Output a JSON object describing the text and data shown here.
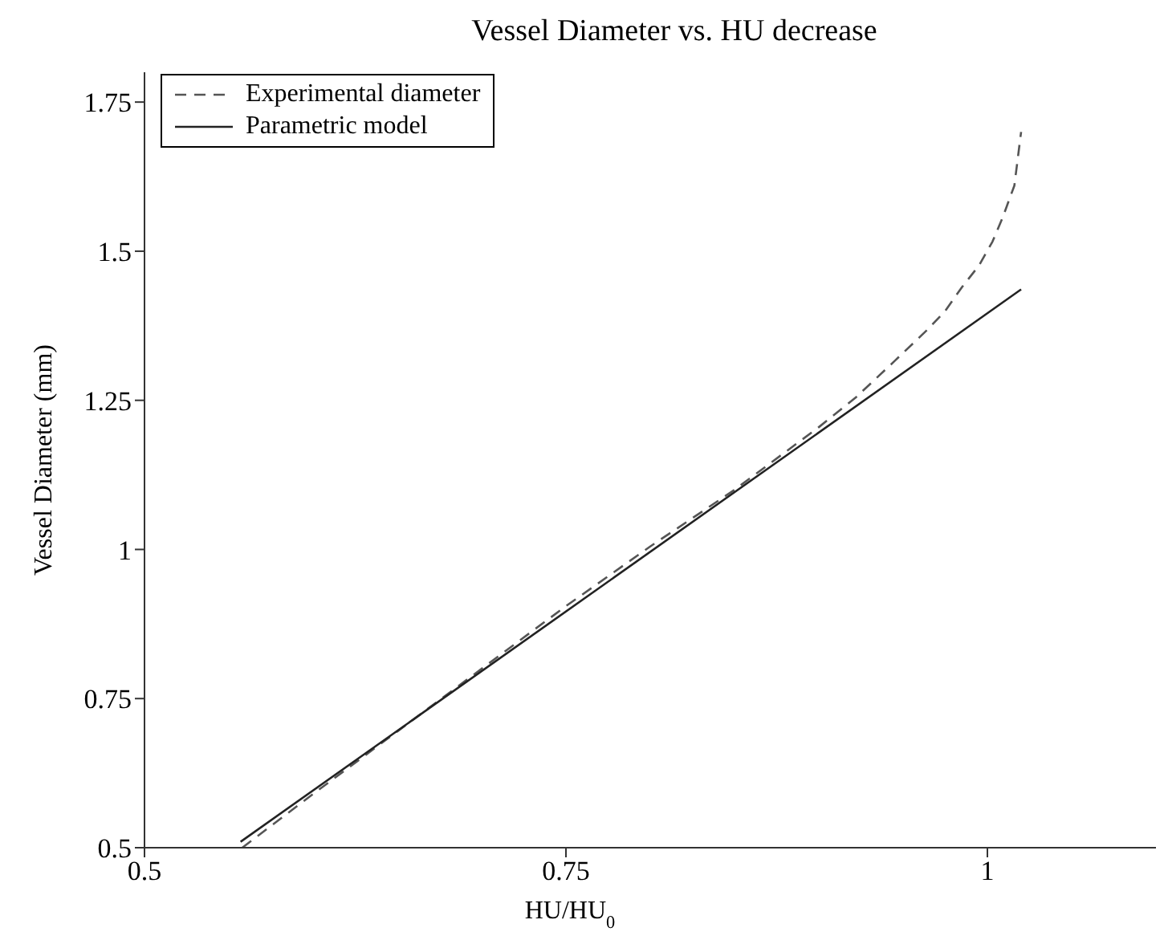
{
  "chart_data": {
    "type": "line",
    "title": "Vessel Diameter vs. HU decrease",
    "xlabel": "HU/HU$_{0}$",
    "ylabel": "Vessel Diameter (mm)",
    "xlim": [
      0.5,
      1.1
    ],
    "ylim": [
      0.5,
      1.8
    ],
    "xticks": [
      0.5,
      0.75,
      1
    ],
    "yticks": [
      0.5,
      0.75,
      1,
      1.25,
      1.5,
      1.75
    ],
    "grid": false,
    "legend": "top left",
    "marker": "none",
    "series": [
      {
        "name": "Experimental diameter",
        "color": "#555555",
        "line_style": "dashed",
        "x": [
          0.558,
          0.6,
          0.65,
          0.7,
          0.75,
          0.8,
          0.85,
          0.9,
          0.922,
          0.945,
          0.965,
          0.975,
          0.985,
          0.995,
          1.003,
          1.009,
          1.016,
          1.02
        ],
        "values": [
          0.5,
          0.59,
          0.695,
          0.8,
          0.905,
          1.005,
          1.1,
          1.205,
          1.255,
          1.316,
          1.37,
          1.4,
          1.44,
          1.476,
          1.516,
          1.556,
          1.61,
          1.7
        ]
      },
      {
        "name": "Parametric model",
        "color": "#222222",
        "line_style": "solid",
        "x": [
          0.557,
          1.02
        ],
        "values": [
          0.51,
          1.436
        ]
      }
    ]
  }
}
